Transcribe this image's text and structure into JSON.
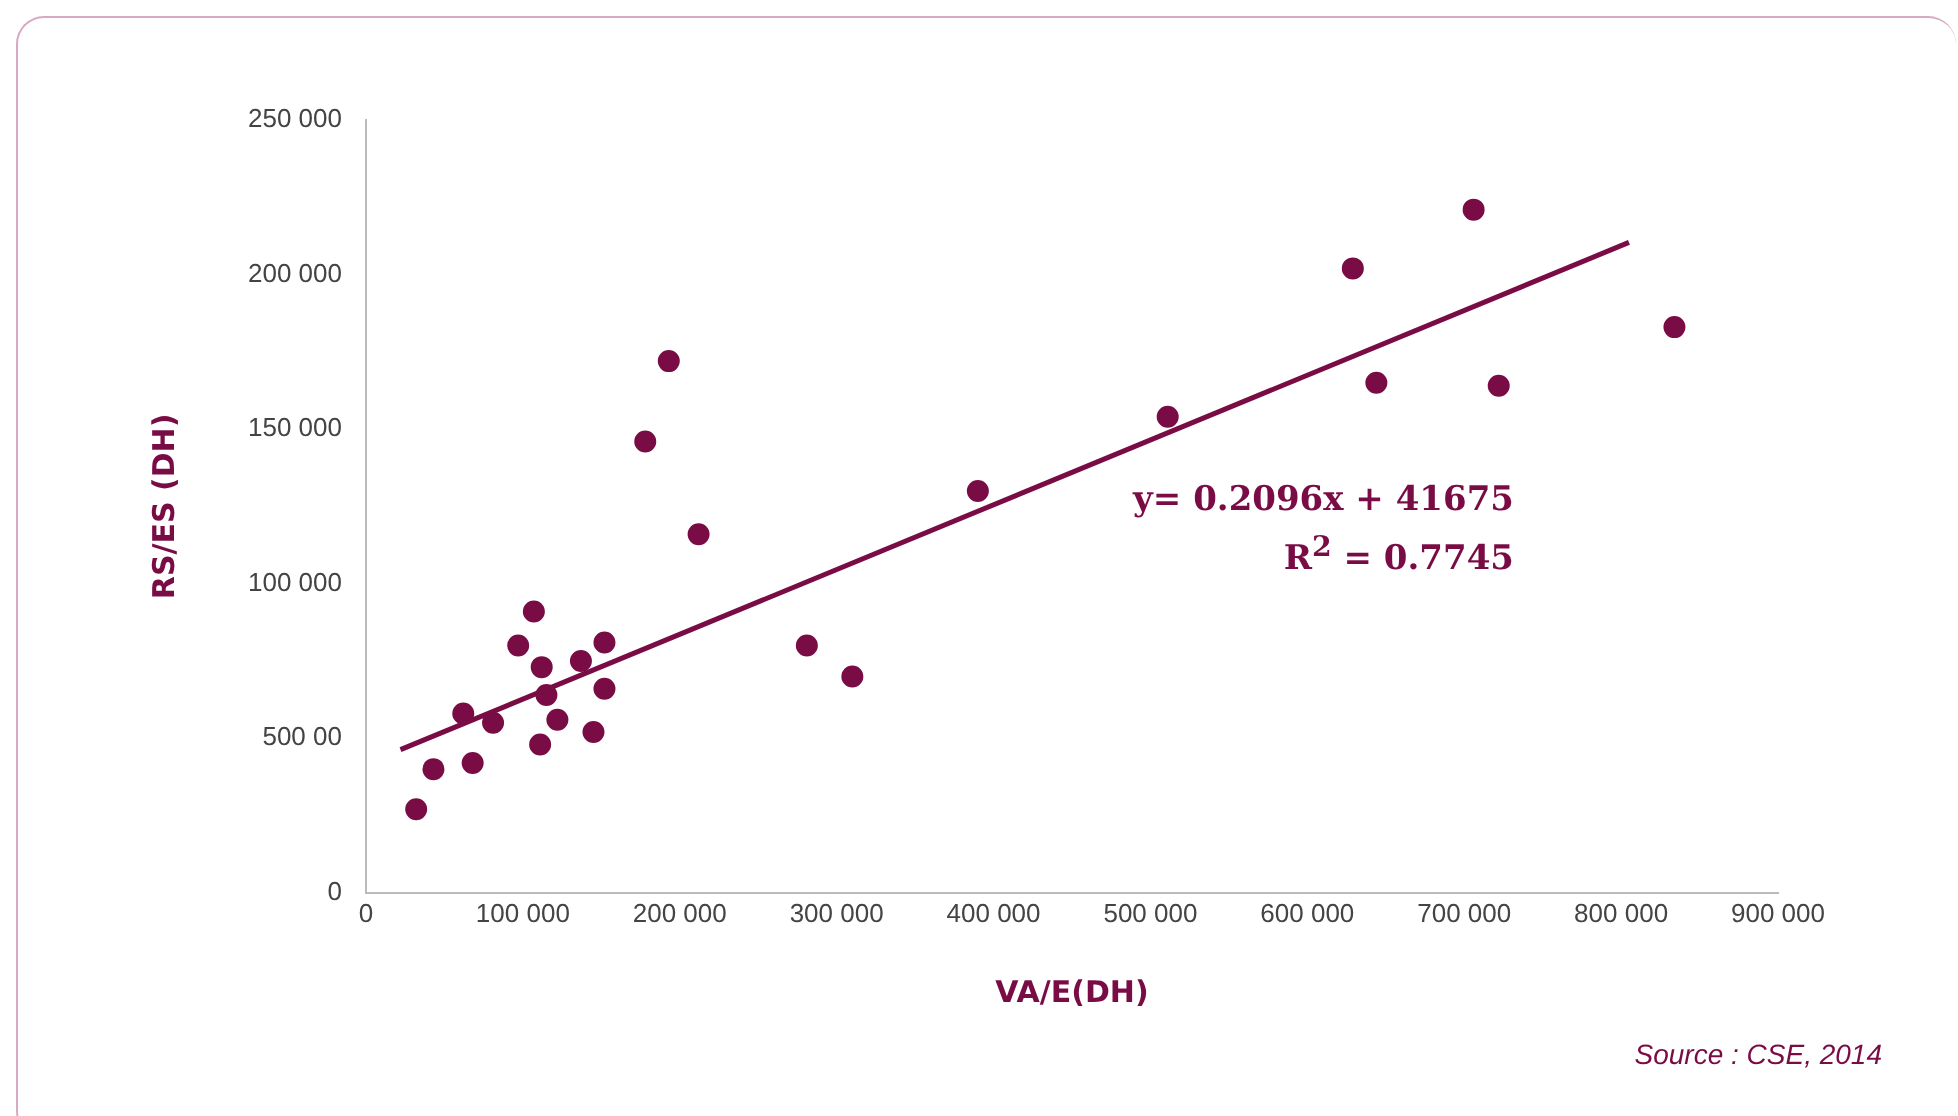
{
  "chart_data": {
    "type": "scatter",
    "xlabel": "VA/E(DH)",
    "ylabel": "RS/ES (DH)",
    "xlim": [
      0,
      900000
    ],
    "ylim": [
      0,
      250000
    ],
    "xticks": [
      0,
      {
        "value": 100000,
        "label": "100 000"
      },
      {
        "value": 200000,
        "label": "200 000"
      },
      {
        "value": 300000,
        "label": "300 000"
      },
      {
        "value": 400000,
        "label": "400 000"
      },
      {
        "value": 500000,
        "label": "500 000"
      },
      {
        "value": 600000,
        "label": "600 000"
      },
      {
        "value": 700000,
        "label": "700 000"
      },
      {
        "value": 800000,
        "label": "800 000"
      },
      {
        "value": 900000,
        "label": "900 000"
      }
    ],
    "yticks": [
      0,
      {
        "value": 50000,
        "label": "500 00"
      },
      {
        "value": 100000,
        "label": "100 000"
      },
      {
        "value": 150000,
        "label": "150 000"
      },
      {
        "value": 200000,
        "label": "200 000"
      },
      {
        "value": 250000,
        "label": "250 000"
      }
    ],
    "grid": false,
    "legend": false,
    "marker": "circle",
    "series": [
      {
        "color": "#7a0c45",
        "x": [
          32000,
          43000,
          68000,
          62000,
          81000,
          97000,
          107000,
          112000,
          115000,
          111000,
          122000,
          137000,
          152000,
          152000,
          145000,
          178000,
          193000,
          212000,
          281000,
          310000,
          390000,
          511000,
          629000,
          644000,
          706000,
          722000,
          834000
        ],
        "values": [
          27000,
          40000,
          42000,
          58000,
          55000,
          80000,
          91000,
          73000,
          64000,
          48000,
          56000,
          75000,
          81000,
          66000,
          52000,
          146000,
          172000,
          116000,
          80000,
          70000,
          130000,
          154000,
          202000,
          165000,
          221000,
          164000,
          183000
        ]
      },
      {
        "type": "line",
        "color": "#7a0c45",
        "x": [
          22000,
          805000
        ],
        "values": [
          46300,
          210400
        ],
        "marker": "none"
      }
    ],
    "annotations": [
      "y= 0.2096x + 41675",
      "R$^{2}$ = 0.7745",
      "Source : CSE, 2014"
    ]
  }
}
